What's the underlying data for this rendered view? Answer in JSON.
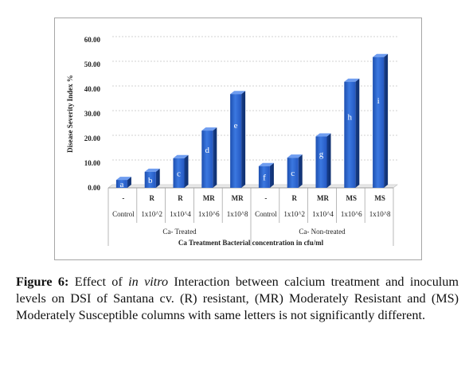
{
  "chart_data": {
    "type": "bar",
    "ylabel": "Disease Severity Index %",
    "xlabel": "Ca Treatment Bacterial concentration in cfu/ml",
    "ylim": [
      0,
      60
    ],
    "yticks": [
      "0.00",
      "10.00",
      "20.00",
      "30.00",
      "40.00",
      "50.00",
      "60.00"
    ],
    "grid": true,
    "bar_color": "#2e63c7",
    "groups": [
      {
        "name": "Ca- Treated",
        "bars": [
          {
            "category": "Control",
            "rating": "-",
            "value": 3.2,
            "letter": "a"
          },
          {
            "category": "1x10^2",
            "rating": "R",
            "value": 6.5,
            "letter": "b"
          },
          {
            "category": "1x10^4",
            "rating": "R",
            "value": 12.0,
            "letter": "c"
          },
          {
            "category": "1x10^6",
            "rating": "MR",
            "value": 23.2,
            "letter": "d"
          },
          {
            "category": "1x10^8",
            "rating": "MR",
            "value": 38.0,
            "letter": "e"
          }
        ]
      },
      {
        "name": "Ca- Non-treated",
        "bars": [
          {
            "category": "Control",
            "rating": "-",
            "value": 8.8,
            "letter": "f"
          },
          {
            "category": "1x10^2",
            "rating": "R",
            "value": 12.2,
            "letter": "c"
          },
          {
            "category": "1x10^4",
            "rating": "MR",
            "value": 20.8,
            "letter": "g"
          },
          {
            "category": "1x10^6",
            "rating": "MS",
            "value": 43.0,
            "letter": "h"
          },
          {
            "category": "1x10^8",
            "rating": "MS",
            "value": 53.0,
            "letter": "i"
          }
        ]
      }
    ]
  },
  "caption": {
    "label": "Figure 6:",
    "text_before_italic": " Effect of ",
    "italic": "in vitro",
    "text_after_italic": " Interaction between calcium treatment and inoculum levels on DSI of Santana cv. (R) resistant, (MR) Moderately Resistant and (MS) Moderately Susceptible columns with same letters is not significantly different."
  }
}
